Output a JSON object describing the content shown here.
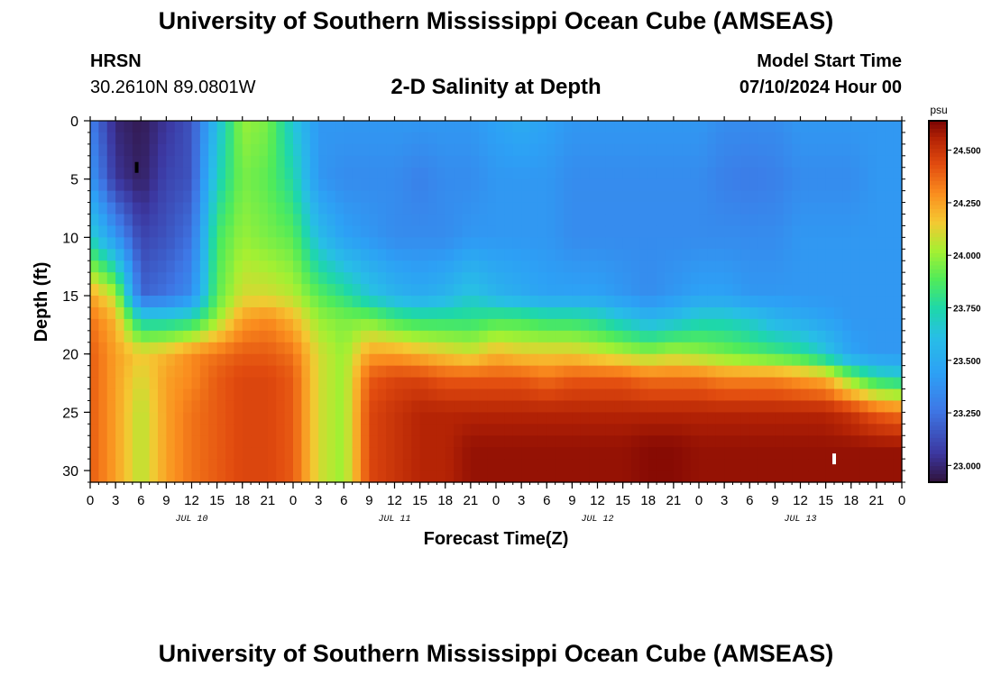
{
  "header": {
    "title": "University of Southern Mississippi Ocean Cube (AMSEAS)",
    "station": "HRSN",
    "location": "30.2610N  89.0801W",
    "plot_title": "2-D Salinity at Depth",
    "model_start_label": "Model Start Time",
    "model_start_value": "07/10/2024 Hour 00"
  },
  "footer": {
    "title": "University of Southern Mississippi Ocean Cube (AMSEAS)"
  },
  "chart_data": {
    "type": "heatmap",
    "title": "2-D Salinity at Depth",
    "xlabel": "Forecast Time(Z)",
    "ylabel": "Depth (ft)",
    "xlim": [
      0,
      96
    ],
    "ylim": [
      0,
      31
    ],
    "x_tick_values": [
      0,
      3,
      6,
      9,
      12,
      15,
      18,
      21,
      24,
      27,
      30,
      33,
      36,
      39,
      42,
      45,
      48,
      51,
      54,
      57,
      60,
      63,
      66,
      69,
      72,
      75,
      78,
      81,
      84,
      87,
      90,
      93,
      96
    ],
    "x_tick_labels": [
      "0",
      "3",
      "6",
      "9",
      "12",
      "15",
      "18",
      "21",
      "0",
      "3",
      "6",
      "9",
      "12",
      "15",
      "18",
      "21",
      "0",
      "3",
      "6",
      "9",
      "12",
      "15",
      "18",
      "21",
      "0",
      "3",
      "6",
      "9",
      "12",
      "15",
      "18",
      "21",
      "0"
    ],
    "day_labels": [
      {
        "x": 12,
        "label": "JUL 10"
      },
      {
        "x": 36,
        "label": "JUL 11"
      },
      {
        "x": 60,
        "label": "JUL 12"
      },
      {
        "x": 84,
        "label": "JUL 13"
      }
    ],
    "y_tick_values": [
      0,
      5,
      10,
      15,
      20,
      25,
      30
    ],
    "y_tick_labels": [
      "0",
      "5",
      "10",
      "15",
      "20",
      "25",
      "30"
    ],
    "colorbar": {
      "unit": "psu",
      "range": [
        22.92,
        24.64
      ],
      "tick_values": [
        23.0,
        23.25,
        23.5,
        23.75,
        24.0,
        24.25,
        24.5
      ],
      "tick_labels": [
        "23.000",
        "23.250",
        "23.500",
        "23.750",
        "24.000",
        "24.250",
        "24.500"
      ]
    },
    "profile_times": [
      0,
      3,
      6,
      9,
      12,
      15,
      18,
      21,
      24,
      27,
      30,
      33,
      36,
      39,
      42,
      45,
      48,
      51,
      54,
      57,
      60,
      63,
      66,
      69,
      72,
      75,
      78,
      81,
      84,
      87,
      90,
      93,
      96
    ],
    "profile_depth_levels": [
      0,
      5,
      10,
      15,
      17,
      20,
      22,
      25,
      28,
      31
    ],
    "salinity_profiles": [
      [
        23.3,
        23.4,
        23.7,
        24.25,
        24.35,
        24.4,
        24.4,
        24.4,
        24.4,
        24.4
      ],
      [
        23.0,
        23.05,
        23.4,
        24.05,
        24.2,
        24.25,
        24.25,
        24.25,
        24.25,
        24.25
      ],
      [
        22.95,
        22.97,
        23.1,
        23.2,
        23.7,
        24.15,
        24.1,
        24.05,
        24.05,
        24.05
      ],
      [
        23.05,
        23.1,
        23.15,
        23.25,
        23.7,
        24.2,
        24.25,
        24.25,
        24.25,
        24.25
      ],
      [
        23.15,
        23.15,
        23.25,
        23.35,
        23.75,
        24.3,
        24.3,
        24.35,
        24.35,
        24.35
      ],
      [
        23.6,
        23.7,
        23.85,
        23.9,
        24.0,
        24.35,
        24.4,
        24.4,
        24.4,
        24.4
      ],
      [
        24.0,
        23.95,
        24.0,
        24.1,
        24.25,
        24.4,
        24.45,
        24.45,
        24.45,
        24.45
      ],
      [
        23.95,
        23.9,
        23.95,
        24.1,
        24.3,
        24.4,
        24.45,
        24.45,
        24.45,
        24.45
      ],
      [
        23.65,
        23.75,
        23.9,
        24.05,
        24.2,
        24.35,
        24.4,
        24.4,
        24.4,
        24.4
      ],
      [
        23.4,
        23.4,
        23.6,
        23.9,
        24.0,
        24.1,
        24.1,
        24.1,
        24.1,
        24.1
      ],
      [
        23.4,
        23.35,
        23.45,
        23.8,
        23.95,
        24.0,
        24.0,
        24.0,
        24.0,
        24.0
      ],
      [
        23.4,
        23.35,
        23.4,
        23.65,
        23.95,
        24.25,
        24.4,
        24.45,
        24.45,
        24.45
      ],
      [
        23.4,
        23.35,
        23.35,
        23.55,
        23.85,
        24.25,
        24.45,
        24.5,
        24.5,
        24.5
      ],
      [
        23.4,
        23.3,
        23.35,
        23.5,
        23.8,
        24.2,
        24.45,
        24.55,
        24.55,
        24.55
      ],
      [
        23.4,
        23.35,
        23.35,
        23.55,
        23.8,
        24.15,
        24.4,
        24.55,
        24.55,
        24.55
      ],
      [
        23.4,
        23.35,
        23.4,
        23.65,
        23.8,
        24.1,
        24.4,
        24.55,
        24.6,
        24.6
      ],
      [
        23.45,
        23.4,
        23.4,
        23.55,
        23.85,
        24.2,
        24.4,
        24.55,
        24.6,
        24.6
      ],
      [
        23.5,
        23.4,
        23.4,
        23.5,
        23.85,
        24.15,
        24.4,
        24.55,
        24.6,
        24.6
      ],
      [
        23.45,
        23.4,
        23.4,
        23.45,
        23.8,
        24.15,
        24.35,
        24.55,
        24.6,
        24.6
      ],
      [
        23.4,
        23.35,
        23.35,
        23.45,
        23.8,
        24.15,
        24.4,
        24.55,
        24.6,
        24.6
      ],
      [
        23.4,
        23.35,
        23.35,
        23.45,
        23.75,
        24.1,
        24.4,
        24.55,
        24.6,
        24.6
      ],
      [
        23.4,
        23.35,
        23.35,
        23.4,
        23.65,
        24.05,
        24.4,
        24.55,
        24.6,
        24.6
      ],
      [
        23.4,
        23.35,
        23.35,
        23.35,
        23.55,
        24.0,
        24.35,
        24.55,
        24.62,
        24.62
      ],
      [
        23.4,
        23.35,
        23.35,
        23.4,
        23.6,
        24.05,
        24.35,
        24.55,
        24.62,
        24.62
      ],
      [
        23.4,
        23.35,
        23.35,
        23.45,
        23.7,
        24.0,
        24.35,
        24.55,
        24.6,
        24.6
      ],
      [
        23.35,
        23.3,
        23.35,
        23.45,
        23.7,
        23.95,
        24.3,
        24.55,
        24.6,
        24.6
      ],
      [
        23.35,
        23.28,
        23.35,
        23.4,
        23.65,
        23.9,
        24.3,
        24.55,
        24.6,
        24.6
      ],
      [
        23.35,
        23.3,
        23.35,
        23.4,
        23.55,
        23.85,
        24.3,
        24.55,
        24.6,
        24.6
      ],
      [
        23.4,
        23.35,
        23.4,
        23.4,
        23.5,
        23.8,
        24.25,
        24.55,
        24.6,
        24.6
      ],
      [
        23.4,
        23.35,
        23.4,
        23.4,
        23.45,
        23.65,
        24.2,
        24.55,
        24.6,
        24.6
      ],
      [
        23.4,
        23.35,
        23.4,
        23.4,
        23.4,
        23.45,
        23.95,
        24.5,
        24.6,
        24.6
      ],
      [
        23.4,
        23.4,
        23.4,
        23.4,
        23.4,
        23.4,
        23.75,
        24.4,
        24.6,
        24.6
      ],
      [
        23.4,
        23.4,
        23.4,
        23.4,
        23.4,
        23.4,
        23.7,
        24.35,
        24.6,
        24.6
      ]
    ],
    "markers": [
      {
        "x": 5.5,
        "depth": 4,
        "color": "#000000"
      },
      {
        "x": 88,
        "depth": 29,
        "color": "#ffffff"
      }
    ]
  }
}
